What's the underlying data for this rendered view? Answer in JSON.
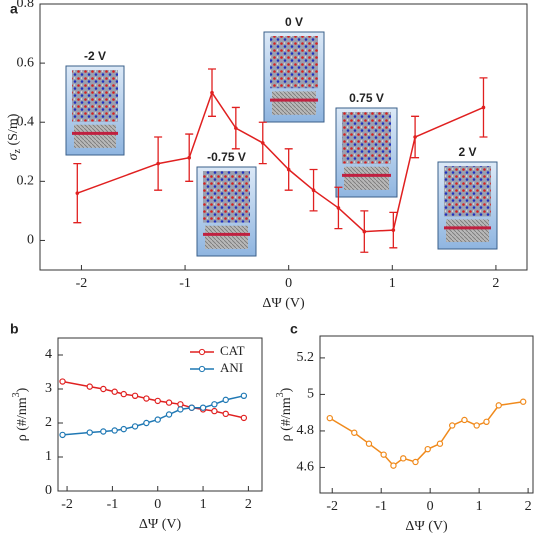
{
  "chart_data": [
    {
      "type": "line",
      "label": "a",
      "xlabel": "ΔΨ (V)",
      "ylabel": [
        "σ",
        "z",
        " (S/m)"
      ],
      "xlim": [
        -2.4,
        2.3
      ],
      "ylim": [
        -0.1,
        0.8
      ],
      "xticks": [
        -2,
        -1,
        0,
        1,
        2
      ],
      "yticks": [
        0,
        0.2,
        0.4,
        0.6,
        0.8
      ],
      "x": [
        -2.04,
        -1.26,
        -0.96,
        -0.74,
        -0.51,
        -0.25,
        0,
        0.24,
        0.48,
        0.73,
        1.01,
        1.22,
        1.88
      ],
      "series": [
        {
          "color": "#e02020",
          "values": [
            0.16,
            0.26,
            0.28,
            0.5,
            0.38,
            0.33,
            0.24,
            0.17,
            0.11,
            0.03,
            0.035,
            0.35,
            0.45
          ],
          "errors": [
            0.1,
            0.09,
            0.08,
            0.08,
            0.07,
            0.07,
            0.07,
            0.07,
            0.07,
            0.07,
            0.06,
            0.07,
            0.1
          ]
        }
      ],
      "annotations": [
        "-2 V",
        "-0.75 V",
        "0 V",
        "0.75 V",
        "2 V"
      ]
    },
    {
      "type": "line",
      "label": "b",
      "xlabel": "ΔΨ (V)",
      "ylabel": [
        "ρ (#/nm",
        "3",
        ")"
      ],
      "xlim": [
        -2.2,
        2.3
      ],
      "ylim": [
        0,
        4.5
      ],
      "xticks": [
        -2,
        -1,
        0,
        1,
        2
      ],
      "yticks": [
        0,
        1,
        2,
        3,
        4
      ],
      "x": [
        -2.1,
        -1.5,
        -1.2,
        -0.95,
        -0.75,
        -0.5,
        -0.25,
        0,
        0.25,
        0.5,
        0.75,
        1,
        1.25,
        1.5,
        1.9
      ],
      "legend": "northeast",
      "series": [
        {
          "name": "CAT",
          "color": "#e02020",
          "values": [
            3.22,
            3.07,
            3.0,
            2.92,
            2.85,
            2.8,
            2.72,
            2.65,
            2.6,
            2.55,
            2.45,
            2.4,
            2.35,
            2.27,
            2.15
          ]
        },
        {
          "name": "ANI",
          "color": "#1f78b4",
          "values": [
            1.65,
            1.72,
            1.75,
            1.78,
            1.82,
            1.9,
            2.0,
            2.1,
            2.25,
            2.4,
            2.45,
            2.45,
            2.55,
            2.68,
            2.8
          ]
        }
      ]
    },
    {
      "type": "line",
      "label": "c",
      "xlabel": "ΔΨ (V)",
      "ylabel": [
        "ρ (#/nm",
        "3",
        ")"
      ],
      "xlim": [
        -2.25,
        2.1
      ],
      "ylim": [
        4.46,
        5.32
      ],
      "xticks": [
        -2,
        -1,
        0,
        1,
        2
      ],
      "yticks": [
        4.6,
        4.8,
        5,
        5.2
      ],
      "x": [
        -2.05,
        -1.55,
        -1.25,
        -0.95,
        -0.75,
        -0.55,
        -0.3,
        -0.05,
        0.2,
        0.45,
        0.7,
        0.95,
        1.15,
        1.4,
        1.9
      ],
      "series": [
        {
          "color": "#f08a1c",
          "values": [
            4.87,
            4.79,
            4.73,
            4.67,
            4.61,
            4.65,
            4.63,
            4.7,
            4.73,
            4.83,
            4.86,
            4.83,
            4.85,
            4.94,
            4.96
          ]
        }
      ]
    }
  ]
}
